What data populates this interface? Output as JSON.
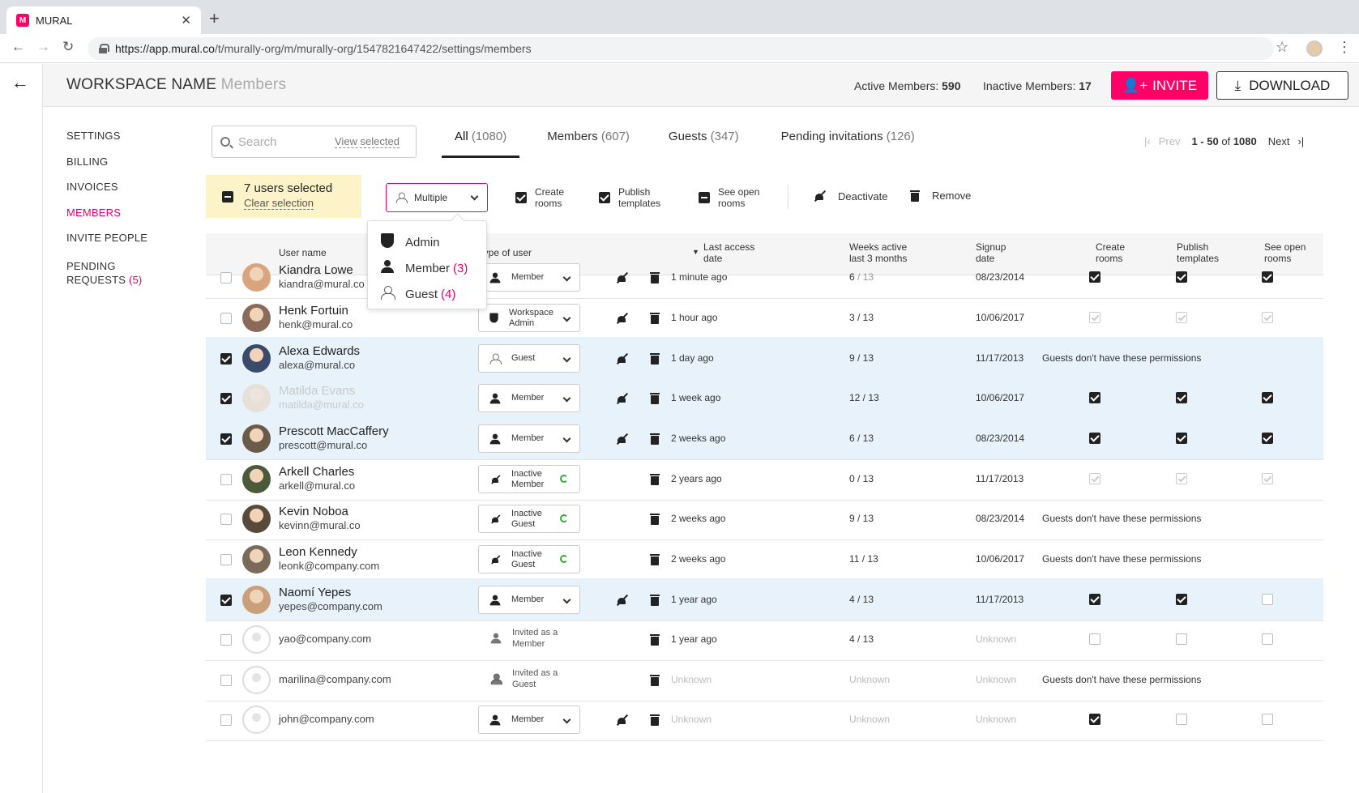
{
  "browser": {
    "tab_title": "MURAL",
    "favicon_letter": "M",
    "url_host": "https://app.mural.co",
    "url_path": "/t/murally-org/m/murally-org/1547821647422/settings/members"
  },
  "header": {
    "workspace_name": "WORKSPACE NAME",
    "section": "Members",
    "active_label": "Active Members:",
    "active_count": "590",
    "inactive_label": "Inactive Members:",
    "inactive_count": "17",
    "invite_label": "INVITE",
    "download_label": "DOWNLOAD",
    "accent_color": "#ff0066"
  },
  "sidebar": {
    "items": [
      {
        "label": "SETTINGS"
      },
      {
        "label": "BILLING"
      },
      {
        "label": "INVOICES"
      },
      {
        "label": "MEMBERS"
      },
      {
        "label": "INVITE PEOPLE"
      },
      {
        "label": "PENDING"
      },
      {
        "label": "REQUESTS"
      }
    ],
    "pending_count": "(5)"
  },
  "search": {
    "placeholder": "Search",
    "view_selected": "View selected"
  },
  "filter_tabs": [
    {
      "label": "All",
      "count": "(1080)"
    },
    {
      "label": "Members",
      "count": "(607)"
    },
    {
      "label": "Guests",
      "count": "(347)"
    },
    {
      "label": "Pending invitations",
      "count": "(126)"
    }
  ],
  "pager": {
    "prev": "Prev",
    "range": "1 - 50",
    "of": "of",
    "total": "1080",
    "next": "Next"
  },
  "selection": {
    "count_text": "7 users selected",
    "clear": "Clear selection",
    "role_dropdown": "Multiple",
    "create_rooms_1": "Create",
    "create_rooms_2": "rooms",
    "publish_1": "Publish",
    "publish_2": "templates",
    "see_open_1": "See open",
    "see_open_2": "rooms",
    "deactivate": "Deactivate",
    "remove": "Remove"
  },
  "role_menu": [
    {
      "label": "Admin",
      "count": ""
    },
    {
      "label": "Member",
      "count": "(3)"
    },
    {
      "label": "Guest",
      "count": "(4)"
    }
  ],
  "table": {
    "headers": {
      "user_name": "User name",
      "type": "Type of user",
      "last_access_1": "Last access",
      "last_access_2": "date",
      "weeks_1": "Weeks active",
      "weeks_2": "last 3 months",
      "signup_1": "Signup",
      "signup_2": "date",
      "create_1": "Create",
      "create_2": "rooms",
      "publish_1": "Publish",
      "publish_2": "templates",
      "open_1": "See open",
      "open_2": "rooms"
    },
    "no_permissions": "Guests don't have these permissions",
    "rows": [
      {
        "name": "Kiandra Lowe",
        "email": "kiandra@mural.co",
        "role1": "Member",
        "role2": "",
        "last": "1 minute ago",
        "weeks": "6",
        "weeks_of": "/ 13",
        "signup": "08/23/2014"
      },
      {
        "name": "Henk Fortuin",
        "email": "henk@mural.co",
        "role1": "Workspace",
        "role2": "Admin",
        "last": "1 hour ago",
        "weeks": "3 / 13",
        "weeks_of": "",
        "signup": "10/06/2017"
      },
      {
        "name": "Alexa Edwards",
        "email": "alexa@mural.co",
        "role1": "Guest",
        "role2": "",
        "last": "1 day ago",
        "weeks": "9 / 13",
        "weeks_of": "",
        "signup": "11/17/2013"
      },
      {
        "name": "Matilda Evans",
        "email": "matilda@mural.co",
        "role1": "Member",
        "role2": "",
        "last": "1 week ago",
        "weeks": "12 / 13",
        "weeks_of": "",
        "signup": "10/06/2017"
      },
      {
        "name": "Prescott MacCaffery",
        "email": "prescott@mural.co",
        "role1": "Member",
        "role2": "",
        "last": "2 weeks ago",
        "weeks": "6 / 13",
        "weeks_of": "",
        "signup": "08/23/2014"
      },
      {
        "name": "Arkell Charles",
        "email": "arkell@mural.co",
        "role1": "Inactive",
        "role2": "Member",
        "last": "2 years ago",
        "weeks": "0 / 13",
        "weeks_of": "",
        "signup": "11/17/2013"
      },
      {
        "name": "Kevin Noboa",
        "email": "kevinn@mural.co",
        "role1": "Inactive",
        "role2": "Guest",
        "last": "2 weeks ago",
        "weeks": "9 / 13",
        "weeks_of": "",
        "signup": "08/23/2014"
      },
      {
        "name": "Leon Kennedy",
        "email": "leonk@company.com",
        "role1": "Inactive",
        "role2": "Guest",
        "last": "2 weeks ago",
        "weeks": "11 / 13",
        "weeks_of": "",
        "signup": "10/06/2017"
      },
      {
        "name": "Naomí Yepes",
        "email": "yepes@company.com",
        "role1": "Member",
        "role2": "",
        "last": "1 year ago",
        "weeks": "4 / 13",
        "weeks_of": "",
        "signup": "11/17/2013"
      },
      {
        "name": "",
        "email": "yao@company.com",
        "role1": "Invited as a",
        "role2": "Member",
        "last": "1 year ago",
        "weeks": "4 / 13",
        "weeks_of": "",
        "signup": "Unknown"
      },
      {
        "name": "",
        "email": "marilina@company.com",
        "role1": "Invited as a",
        "role2": "Guest",
        "last": "Unknown",
        "weeks": "Unknown",
        "weeks_of": "",
        "signup": "Unknown"
      },
      {
        "name": "",
        "email": "john@company.com",
        "role1": "Member",
        "role2": "",
        "last": "Unknown",
        "weeks": "Unknown",
        "weeks_of": "",
        "signup": "Unknown"
      }
    ]
  }
}
